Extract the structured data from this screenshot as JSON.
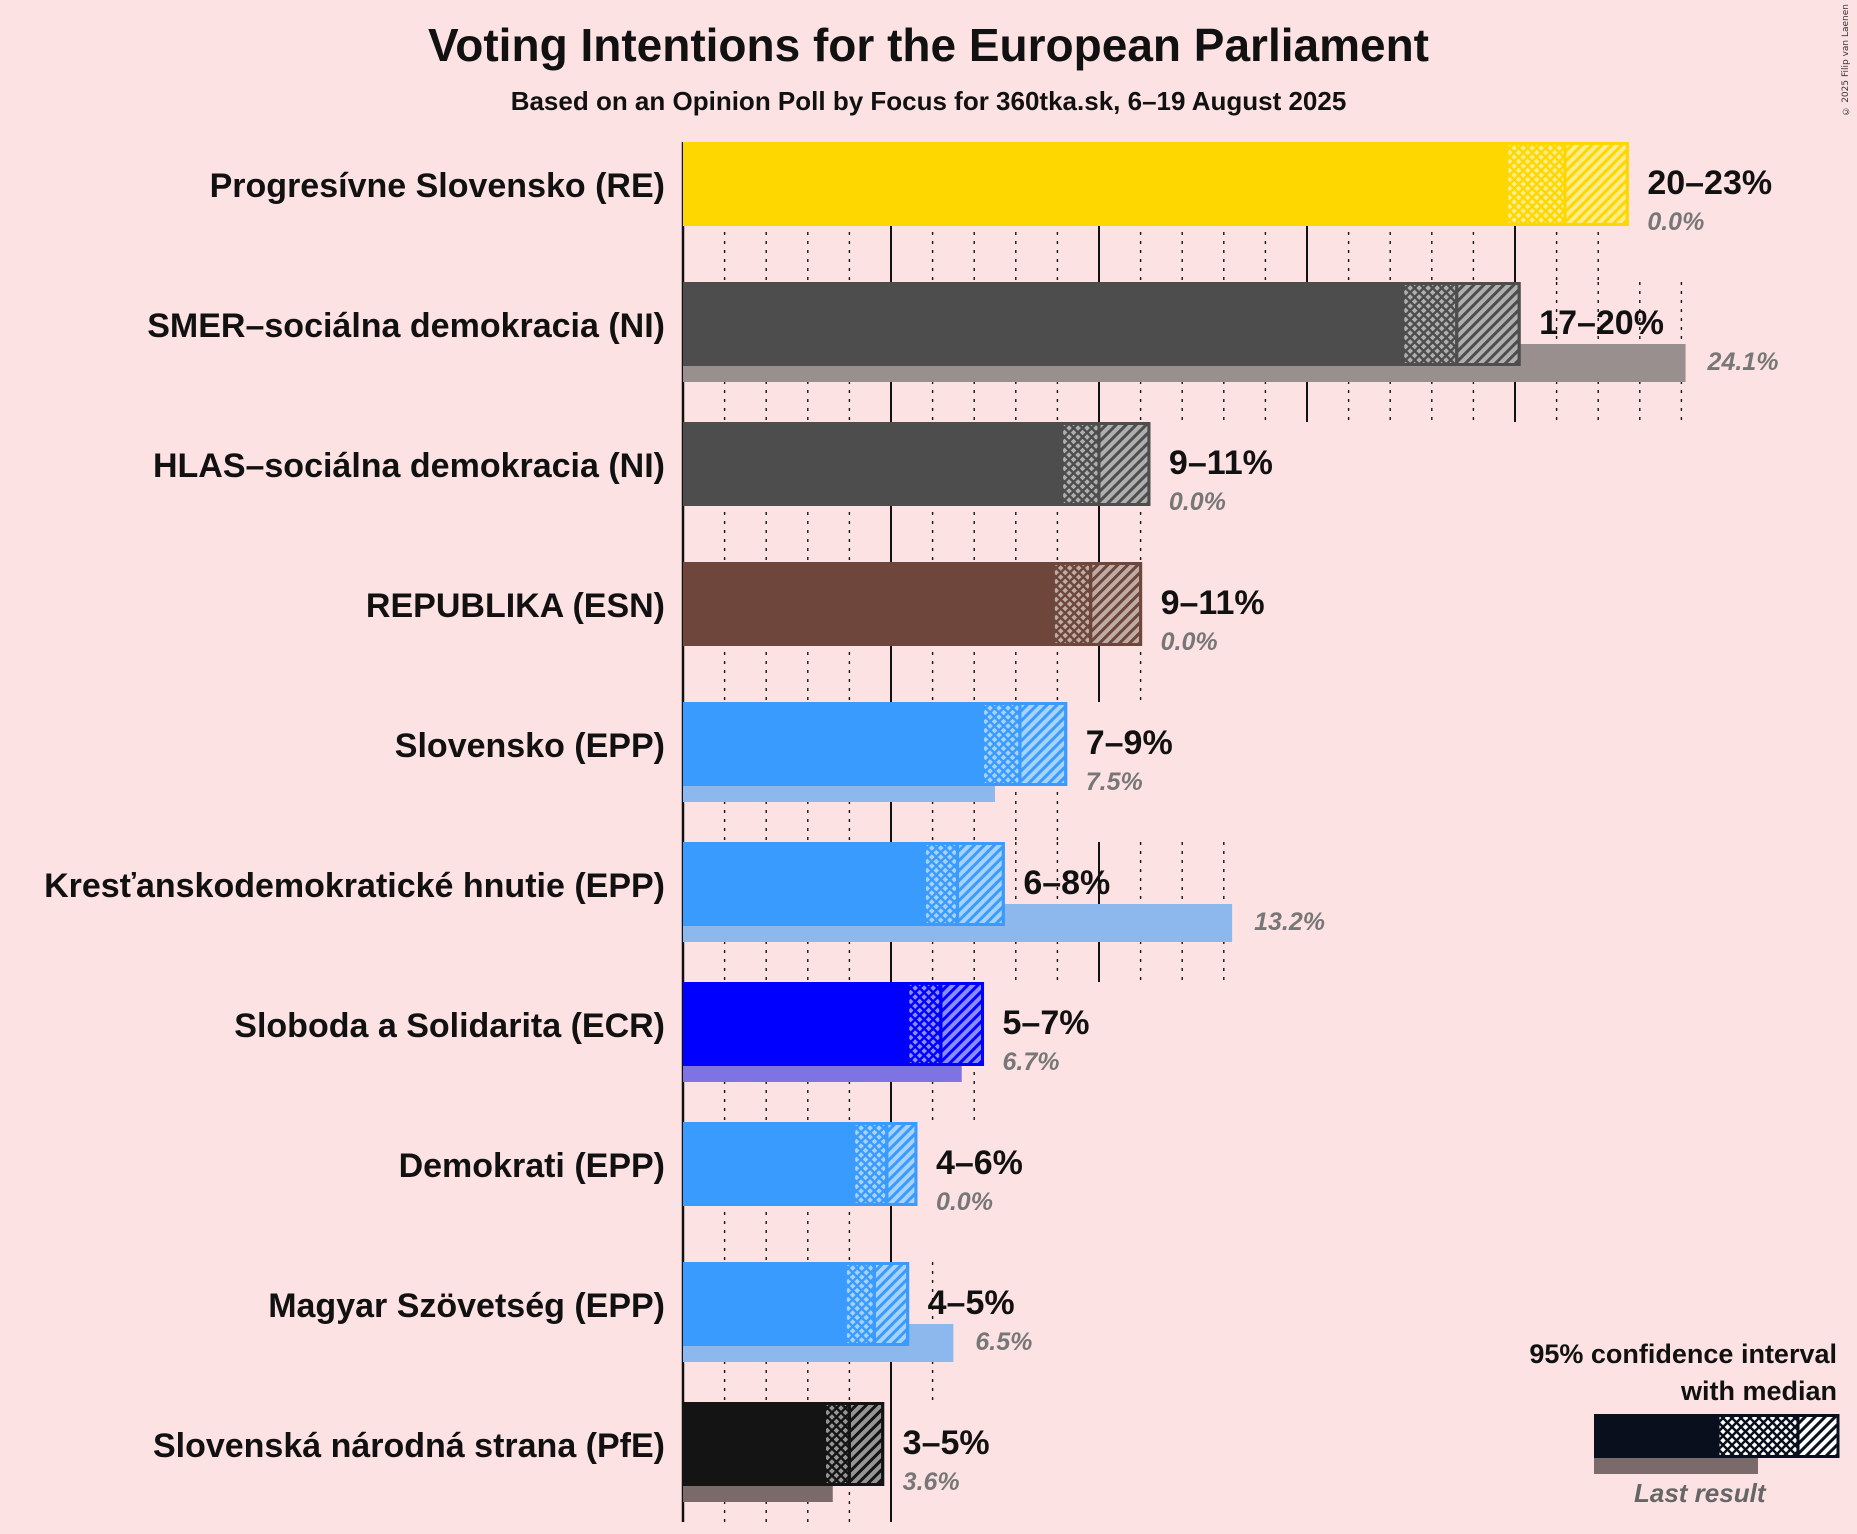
{
  "header": {
    "title": "Voting Intentions for the European Parliament",
    "subtitle": "Based on an Opinion Poll by Focus for 360tka.sk, 6–19 August 2025",
    "copyright": "© 2025 Filip van Laenen"
  },
  "legend": {
    "title_line1": "95% confidence interval",
    "title_line2": "with median",
    "last_result": "Last result"
  },
  "colors": {
    "background": "#fde2e4",
    "text": "#111111",
    "last_label": "#777777"
  },
  "chart_data": {
    "type": "bar",
    "orientation": "horizontal",
    "title": "Voting Intentions for the European Parliament",
    "subtitle": "Based on an Opinion Poll by Focus for 360tka.sk, 6–19 August 2025",
    "xlabel": "",
    "ylabel": "",
    "xlim": [
      0,
      25
    ],
    "unit": "%",
    "gridlines_major": [
      5,
      10,
      15,
      20
    ],
    "gridlines_minor_step": 1,
    "series": [
      {
        "name": "Progresívne Slovensko (RE)",
        "color": "#ffd700",
        "last_color": "#cccccc",
        "low": 19.8,
        "median": 21.2,
        "high": 22.7,
        "range_label": "20–23%",
        "last": 0.0,
        "last_label": "0.0%"
      },
      {
        "name": "SMER–sociálna demokracia (NI)",
        "color": "#4d4d4d",
        "last_color": "#9a8f8f",
        "low": 17.3,
        "median": 18.6,
        "high": 20.1,
        "range_label": "17–20%",
        "last": 24.1,
        "last_label": "24.1%"
      },
      {
        "name": "HLAS–sociálna demokracia (NI)",
        "color": "#4d4d4d",
        "last_color": "#9a8f8f",
        "low": 9.1,
        "median": 10.0,
        "high": 11.2,
        "range_label": "9–11%",
        "last": 0.0,
        "last_label": "0.0%"
      },
      {
        "name": "REPUBLIKA (ESN)",
        "color": "#6e463b",
        "last_color": "#a08a84",
        "low": 8.9,
        "median": 9.8,
        "high": 11.0,
        "range_label": "9–11%",
        "last": 0.0,
        "last_label": "0.0%"
      },
      {
        "name": "Slovensko (EPP)",
        "color": "#3a9bff",
        "last_color": "#8cb8ee",
        "low": 7.2,
        "median": 8.1,
        "high": 9.2,
        "range_label": "7–9%",
        "last": 7.5,
        "last_label": "7.5%"
      },
      {
        "name": "Kresťanskodemokratické hnutie (EPP)",
        "color": "#3a9bff",
        "last_color": "#8cb8ee",
        "low": 5.8,
        "median": 6.6,
        "high": 7.7,
        "range_label": "6–8%",
        "last": 13.2,
        "last_label": "13.2%"
      },
      {
        "name": "Sloboda a Solidarita (ECR)",
        "color": "#0000ff",
        "last_color": "#7f73e3",
        "low": 5.4,
        "median": 6.2,
        "high": 7.2,
        "range_label": "5–7%",
        "last": 6.7,
        "last_label": "6.7%"
      },
      {
        "name": "Demokrati (EPP)",
        "color": "#3a9bff",
        "last_color": "#8cb8ee",
        "low": 4.1,
        "median": 4.9,
        "high": 5.6,
        "range_label": "4–6%",
        "last": 0.0,
        "last_label": "0.0%"
      },
      {
        "name": "Magyar Szövetség (EPP)",
        "color": "#3a9bff",
        "last_color": "#8cb8ee",
        "low": 3.9,
        "median": 4.6,
        "high": 5.4,
        "range_label": "4–5%",
        "last": 6.5,
        "last_label": "6.5%"
      },
      {
        "name": "Slovenská národná strana (PfE)",
        "color": "#141414",
        "last_color": "#7a6a6a",
        "low": 3.4,
        "median": 4.0,
        "high": 4.8,
        "range_label": "3–5%",
        "last": 3.6,
        "last_label": "3.6%"
      }
    ]
  }
}
